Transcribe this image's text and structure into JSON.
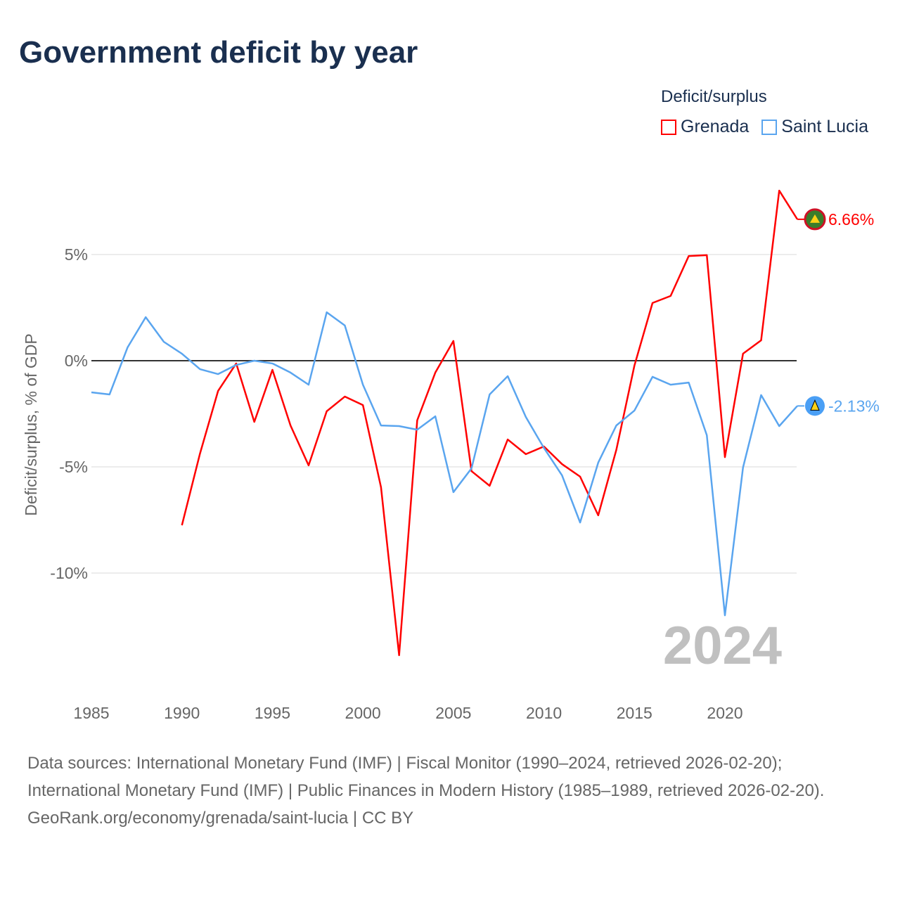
{
  "title": "Government deficit by year",
  "legend": {
    "title": "Deficit/surplus",
    "items": [
      {
        "name": "Grenada",
        "color": "#ff0000"
      },
      {
        "name": "Saint Lucia",
        "color": "#5aa5ef"
      }
    ]
  },
  "year_watermark": "2024",
  "footer": {
    "sources": "Data sources: International Monetary Fund (IMF) | Fiscal Monitor (1990–2024, retrieved 2026-02-20); International Monetary Fund (IMF) | Public Finances in Modern History (1985–1989, retrieved 2026-02-20).",
    "credit": "GeoRank.org/economy/grenada/saint-lucia | CC BY"
  },
  "chart_data": {
    "type": "line",
    "title": "Government deficit by year",
    "xlabel": "",
    "ylabel": "Deficit/surplus, % of GDP",
    "xlim": [
      1985,
      2024
    ],
    "ylim": [
      -14.5,
      8.5
    ],
    "x_ticks": [
      1985,
      1990,
      1995,
      2000,
      2005,
      2010,
      2015,
      2020
    ],
    "y_ticks": [
      {
        "value": 5,
        "label": "5%"
      },
      {
        "value": 0,
        "label": "0%"
      },
      {
        "value": -5,
        "label": "-5%"
      },
      {
        "value": -10,
        "label": "-10%"
      }
    ],
    "grid": true,
    "legend_position": "top-right",
    "series": [
      {
        "name": "Grenada",
        "color": "#ff0000",
        "end_label": "6.66%",
        "x": [
          1990,
          1991,
          1992,
          1993,
          1994,
          1995,
          1996,
          1997,
          1998,
          1999,
          2000,
          2001,
          2002,
          2003,
          2004,
          2005,
          2006,
          2007,
          2008,
          2009,
          2010,
          2011,
          2012,
          2013,
          2014,
          2015,
          2016,
          2017,
          2018,
          2019,
          2020,
          2021,
          2022,
          2023,
          2024
        ],
        "values": [
          -7.75,
          -4.37,
          -1.42,
          -0.13,
          -2.88,
          -0.43,
          -3.05,
          -4.93,
          -2.38,
          -1.69,
          -2.09,
          -5.96,
          -13.87,
          -2.81,
          -0.56,
          0.93,
          -5.2,
          -5.89,
          -3.71,
          -4.4,
          -4.04,
          -4.87,
          -5.46,
          -7.28,
          -4.2,
          -0.23,
          2.72,
          3.05,
          4.93,
          4.97,
          -4.54,
          0.33,
          0.96,
          8.01,
          6.66
        ]
      },
      {
        "name": "Saint Lucia",
        "color": "#5aa5ef",
        "end_label": "-2.13%",
        "x": [
          1985,
          1986,
          1987,
          1988,
          1989,
          1990,
          1991,
          1992,
          1993,
          1994,
          1995,
          1996,
          1997,
          1998,
          1999,
          2000,
          2001,
          2002,
          2003,
          2004,
          2005,
          2006,
          2007,
          2008,
          2009,
          2010,
          2011,
          2012,
          2013,
          2014,
          2015,
          2016,
          2017,
          2018,
          2019,
          2020,
          2021,
          2022,
          2023,
          2024
        ],
        "values": [
          -1.49,
          -1.59,
          0.63,
          2.05,
          0.89,
          0.33,
          -0.4,
          -0.63,
          -0.2,
          0,
          -0.13,
          -0.56,
          -1.13,
          2.28,
          1.66,
          -1.13,
          -3.05,
          -3.08,
          -3.25,
          -2.62,
          -6.19,
          -5.07,
          -1.59,
          -0.73,
          -2.65,
          -4.11,
          -5.4,
          -7.62,
          -4.8,
          -3.05,
          -2.35,
          -0.76,
          -1.13,
          -1.03,
          -3.51,
          -11.99,
          -5.03,
          -1.62,
          -3.08,
          -2.13
        ]
      }
    ]
  }
}
